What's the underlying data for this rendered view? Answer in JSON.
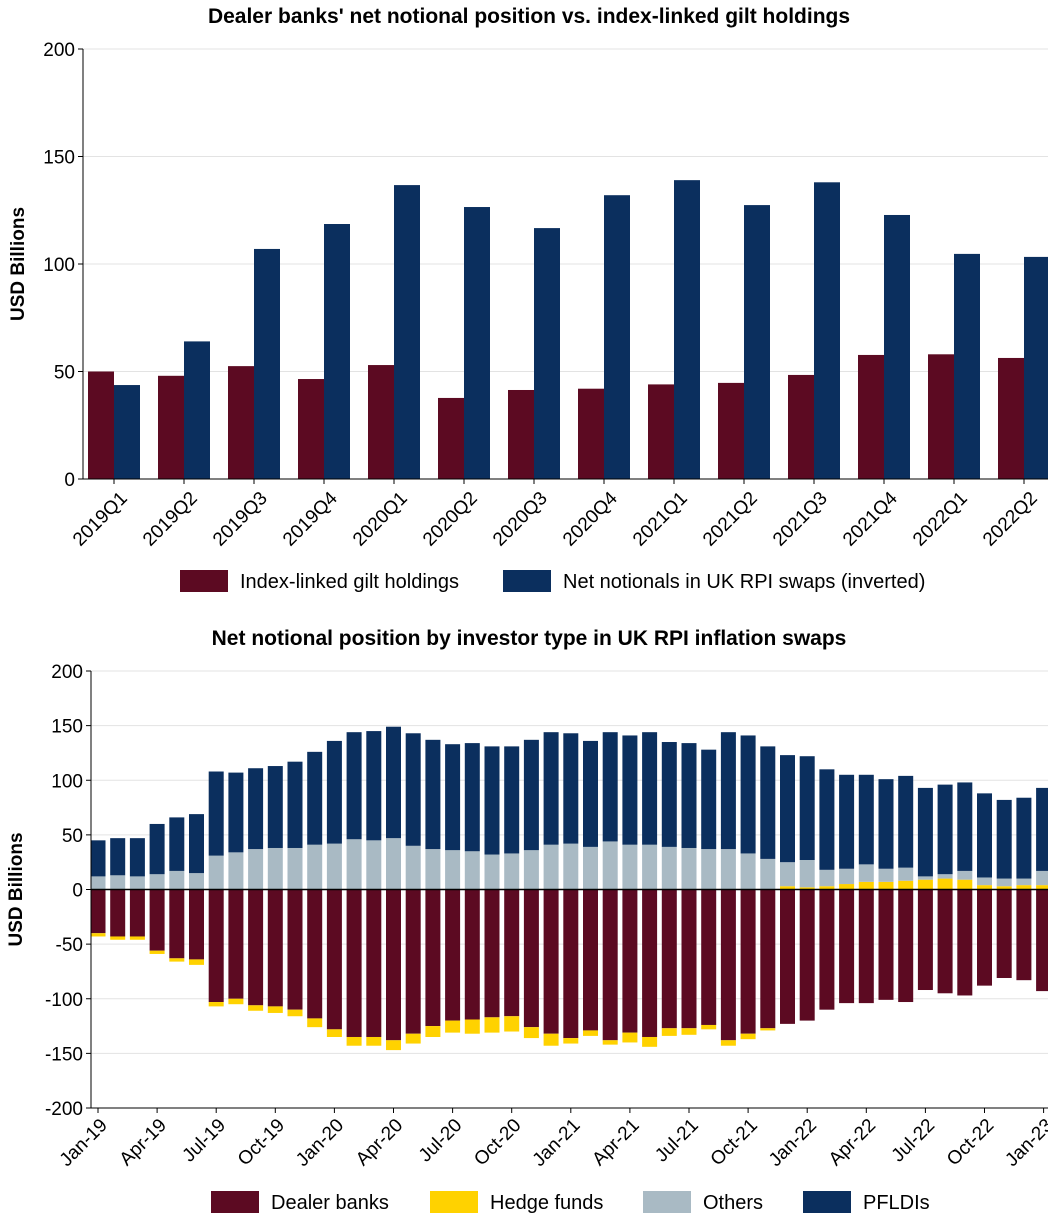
{
  "chart_data": [
    {
      "type": "bar",
      "title": "Dealer banks' net notional position vs. index-linked gilt holdings",
      "ylabel": "USD Billions",
      "categories": [
        "2019Q1",
        "2019Q2",
        "2019Q3",
        "2019Q4",
        "2020Q1",
        "2020Q2",
        "2020Q3",
        "2020Q4",
        "2021Q1",
        "2021Q2",
        "2021Q3",
        "2021Q4",
        "2022Q1",
        "2022Q2"
      ],
      "series": [
        {
          "name": "Index-linked gilt holdings",
          "color": "#5c0a22",
          "values": [
            50,
            48,
            52.5,
            46.5,
            53,
            37.7,
            41.4,
            42,
            44,
            44.7,
            48.4,
            57.7,
            58,
            56.3
          ]
        },
        {
          "name": "Net notionals in UK RPI swaps (inverted)",
          "color": "#0b2f5e",
          "values": [
            43.7,
            64,
            107,
            118.6,
            136.7,
            126.5,
            116.7,
            132,
            139,
            127.4,
            138,
            122.8,
            104.7,
            103.3
          ]
        }
      ],
      "ylim": [
        0,
        200
      ],
      "yticks": [
        0,
        50,
        100,
        150,
        200
      ],
      "grid": true,
      "legend": "bottom"
    },
    {
      "type": "bar",
      "stacked": true,
      "title": "Net notional position by investor type in UK RPI inflation swaps",
      "ylabel": "USD Billions",
      "categories": [
        "Jan-19",
        null,
        null,
        "Apr-19",
        null,
        null,
        "Jul-19",
        null,
        null,
        "Oct-19",
        null,
        null,
        "Jan-20",
        null,
        null,
        "Apr-20",
        null,
        null,
        "Jul-20",
        null,
        null,
        "Oct-20",
        null,
        null,
        "Jan-21",
        null,
        null,
        "Apr-21",
        null,
        null,
        "Jul-21",
        null,
        null,
        "Oct-21",
        null,
        null,
        "Jan-22",
        null,
        null,
        "Apr-22",
        null,
        null,
        "Jul-22",
        null,
        null,
        "Oct-22",
        null,
        null,
        "Jan-23"
      ],
      "series": [
        {
          "name": "Dealer banks",
          "color": "#5c0a22",
          "values": [
            -40,
            -43,
            -43,
            -56,
            -63,
            -64,
            -103,
            -100,
            -106,
            -107,
            -110,
            -118,
            -128,
            -135,
            -135,
            -138,
            -132,
            -125,
            -120,
            -119,
            -117,
            -116,
            -126,
            -132,
            -136,
            -129,
            -138,
            -131,
            -135,
            -127,
            -127,
            -124,
            -138,
            -132,
            -127,
            -123,
            -120,
            -110,
            -104,
            -104,
            -101,
            -103,
            -92,
            -95,
            -97,
            -88,
            -81,
            -83,
            -93
          ]
        },
        {
          "name": "Hedge funds",
          "color": "#ffd200",
          "values": [
            -3,
            -3,
            -3,
            -3,
            -3,
            -5,
            -4,
            -5,
            -5,
            -6,
            -6,
            -8,
            -7,
            -8,
            -8,
            -9,
            -9,
            -10,
            -11,
            -13,
            -14,
            -14,
            -10,
            -11,
            -5,
            -5,
            -4,
            -9,
            -9,
            -7,
            -6,
            -4,
            -5,
            -5,
            -2,
            3,
            2,
            3,
            5,
            7,
            7,
            8,
            9,
            10,
            9,
            4,
            3,
            4,
            4
          ]
        },
        {
          "name": "Others",
          "color": "#a9bac4",
          "values": [
            12,
            13,
            12,
            14,
            17,
            15,
            31,
            34,
            37,
            38,
            38,
            41,
            42,
            46,
            45,
            47,
            40,
            37,
            36,
            35,
            32,
            33,
            36,
            41,
            42,
            39,
            44,
            41,
            41,
            39,
            38,
            37,
            37,
            33,
            28,
            22,
            25,
            15,
            14,
            16,
            12,
            12,
            3,
            4,
            8,
            7,
            7,
            6,
            13
          ]
        },
        {
          "name": "PFLDIs",
          "color": "#0b2f5e",
          "values": [
            33,
            34,
            35,
            46,
            49,
            54,
            77,
            73,
            74,
            75,
            79,
            85,
            94,
            98,
            100,
            102,
            103,
            100,
            97,
            99,
            99,
            98,
            101,
            103,
            101,
            97,
            100,
            100,
            103,
            96,
            96,
            91,
            107,
            108,
            103,
            98,
            95,
            92,
            86,
            82,
            82,
            84,
            81,
            82,
            81,
            77,
            72,
            74,
            76
          ]
        }
      ],
      "ylim": [
        -200,
        200
      ],
      "yticks": [
        -200,
        -150,
        -100,
        -50,
        0,
        50,
        100,
        150,
        200
      ],
      "grid": true,
      "legend": "bottom"
    }
  ]
}
